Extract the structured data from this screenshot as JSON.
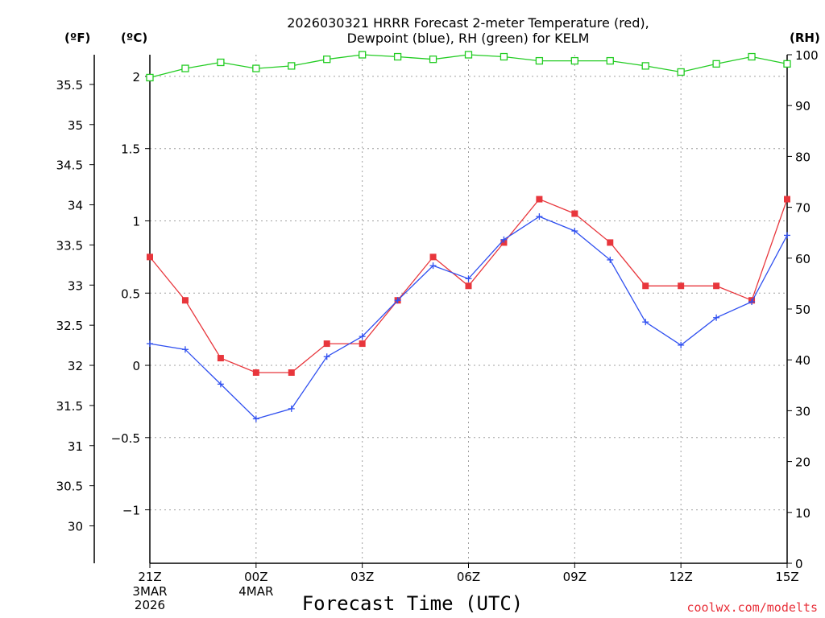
{
  "chart_data": {
    "type": "line",
    "title_line1": "2026030321 HRRR Forecast 2-meter Temperature (red),",
    "title_line2": "Dewpoint (blue), RH (green) for KELM",
    "xlabel": "Forecast Time (UTC)",
    "credit": "coolwx.com/modelts",
    "unit_left_f": "(ºF)",
    "unit_left_c": "(ºC)",
    "unit_right": "(RH)",
    "x_ticks": [
      {
        "hour": 0,
        "label": "21Z"
      },
      {
        "hour": 3,
        "label": "00Z"
      },
      {
        "hour": 6,
        "label": "03Z"
      },
      {
        "hour": 9,
        "label": "06Z"
      },
      {
        "hour": 12,
        "label": "09Z"
      },
      {
        "hour": 15,
        "label": "12Z"
      },
      {
        "hour": 18,
        "label": "15Z"
      }
    ],
    "x_sublabels": [
      {
        "hour": 0,
        "lines": [
          "3MAR",
          "2026"
        ]
      },
      {
        "hour": 3,
        "lines": [
          "4MAR"
        ]
      }
    ],
    "xlim": [
      0,
      18
    ],
    "ylim_c": [
      -1.37,
      2.15
    ],
    "ylim_rh": [
      0,
      100
    ],
    "yticks_c": [
      "2",
      "1.5",
      "1",
      "0.5",
      "0",
      "−0.5",
      "−1"
    ],
    "yticks_c_values": [
      2,
      1.5,
      1,
      0.5,
      0,
      -0.5,
      -1
    ],
    "yticks_f": [
      "35.5",
      "35",
      "34.5",
      "34",
      "33.5",
      "33",
      "32.5",
      "32",
      "31.5",
      "31",
      "30.5",
      "30"
    ],
    "yticks_f_values": [
      35.5,
      35,
      34.5,
      34,
      33.5,
      33,
      32.5,
      32,
      31.5,
      31,
      30.5,
      30
    ],
    "yticks_rh": [
      "100",
      "90",
      "80",
      "70",
      "60",
      "50",
      "40",
      "30",
      "20",
      "10",
      "0"
    ],
    "yticks_rh_values": [
      100,
      90,
      80,
      70,
      60,
      50,
      40,
      30,
      20,
      10,
      0
    ],
    "series": [
      {
        "name": "Temperature",
        "axis": "c",
        "color": "#e8363c",
        "marker": "filled-square",
        "hours": [
          0,
          1,
          2,
          3,
          4,
          5,
          6,
          7,
          8,
          9,
          10,
          11,
          12,
          13,
          14,
          15,
          16,
          17,
          18
        ],
        "values": [
          0.75,
          0.45,
          0.05,
          -0.05,
          -0.05,
          0.15,
          0.15,
          0.45,
          0.75,
          0.55,
          0.85,
          1.15,
          1.05,
          0.85,
          0.55,
          0.55,
          0.55,
          0.45,
          1.15
        ]
      },
      {
        "name": "Dewpoint",
        "axis": "c",
        "color": "#3050f0",
        "marker": "plus",
        "hours": [
          0,
          1,
          2,
          3,
          4,
          5,
          6,
          7,
          8,
          9,
          10,
          11,
          12,
          13,
          14,
          15,
          16,
          17,
          18
        ],
        "values": [
          0.15,
          0.11,
          -0.13,
          -0.37,
          -0.3,
          0.06,
          0.2,
          0.45,
          0.69,
          0.6,
          0.87,
          1.03,
          0.93,
          0.73,
          0.3,
          0.14,
          0.33,
          0.44,
          0.9
        ]
      },
      {
        "name": "RH",
        "axis": "rh",
        "color": "#22cc22",
        "marker": "open-square",
        "hours": [
          0,
          1,
          2,
          3,
          4,
          5,
          6,
          7,
          8,
          9,
          10,
          11,
          12,
          13,
          14,
          15,
          16,
          17,
          18
        ],
        "values": [
          95.5,
          97.3,
          98.5,
          97.3,
          97.8,
          99.1,
          100,
          99.6,
          99.1,
          100,
          99.6,
          98.8,
          98.8,
          98.8,
          97.8,
          96.6,
          98.2,
          99.6,
          98.2
        ]
      }
    ]
  }
}
